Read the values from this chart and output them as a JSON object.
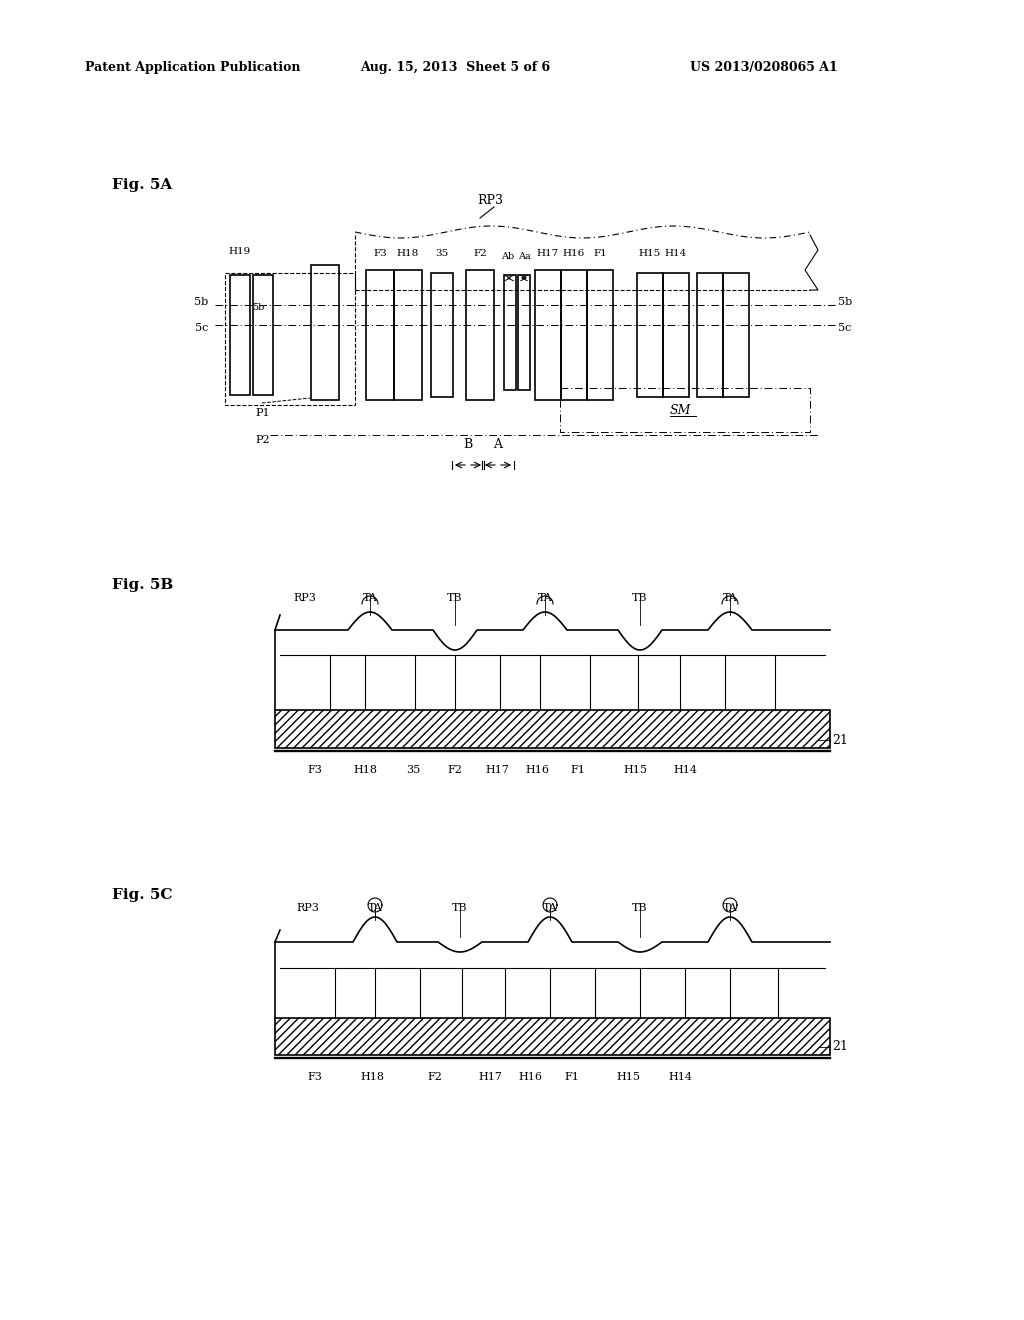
{
  "bg_color": "#ffffff",
  "header_left": "Patent Application Publication",
  "header_mid": "Aug. 15, 2013  Sheet 5 of 6",
  "header_right": "US 2013/0208065 A1",
  "fig5a_label": "Fig. 5A",
  "fig5b_label": "Fig. 5B",
  "fig5c_label": "Fig. 5C"
}
